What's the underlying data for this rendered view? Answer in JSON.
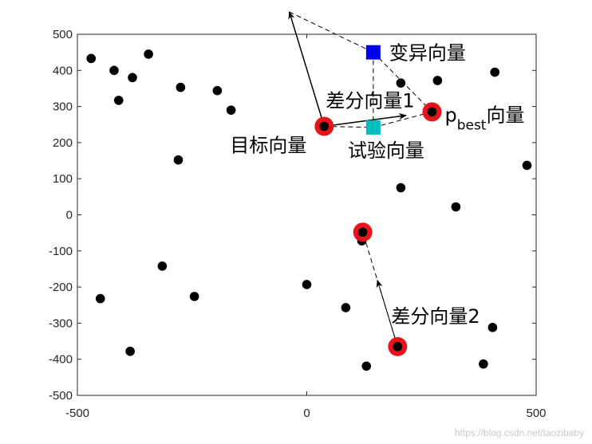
{
  "chart_data": {
    "type": "scatter",
    "xlim": [
      -500,
      500
    ],
    "ylim": [
      -500,
      500
    ],
    "xticks": [
      -500,
      0,
      500
    ],
    "yticks": [
      -500,
      -400,
      -300,
      -200,
      -100,
      0,
      100,
      200,
      300,
      400,
      500
    ],
    "grid": false,
    "population": [
      [
        -470,
        433
      ],
      [
        -420,
        400
      ],
      [
        -410,
        317
      ],
      [
        -380,
        380
      ],
      [
        -345,
        445
      ],
      [
        -275,
        353
      ],
      [
        -280,
        152
      ],
      [
        -195,
        344
      ],
      [
        -165,
        290
      ],
      [
        -315,
        -142
      ],
      [
        -450,
        -232
      ],
      [
        -245,
        -226
      ],
      [
        -385,
        -378
      ],
      [
        0,
        -193
      ],
      [
        85,
        -257
      ],
      [
        120,
        -72
      ],
      [
        130,
        -419
      ],
      [
        205,
        365
      ],
      [
        205,
        75
      ],
      [
        285,
        372
      ],
      [
        325,
        22
      ],
      [
        410,
        395
      ],
      [
        480,
        137
      ],
      [
        405,
        -312
      ],
      [
        385,
        -413
      ]
    ],
    "highlighted": [
      {
        "x": 38,
        "y": 245,
        "label": "目标向量"
      },
      {
        "x": 273,
        "y": 285,
        "label": "p",
        "subscript": "best",
        "label_suffix": "向量"
      },
      {
        "x": 122,
        "y": -48
      },
      {
        "x": 198,
        "y": -365
      }
    ],
    "mutant": {
      "x": 145,
      "y": 450,
      "label": "变异向量",
      "color": "#0000ee"
    },
    "trial": {
      "x": 145,
      "y": 242,
      "label": "试验向量",
      "color": "#00bebe"
    },
    "difference_vectors": [
      {
        "label": "差分向量1"
      },
      {
        "label": "差分向量2"
      }
    ],
    "watermark": "https://blog.csdn.net/taozibaby"
  }
}
